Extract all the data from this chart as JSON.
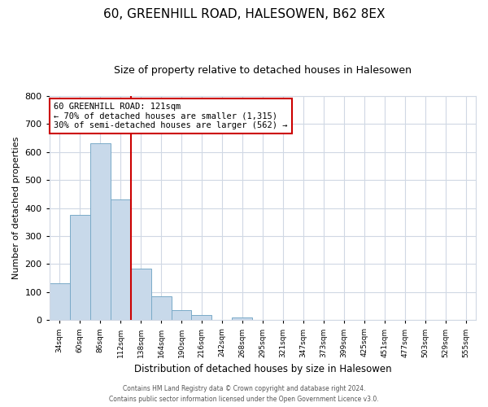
{
  "title": "60, GREENHILL ROAD, HALESOWEN, B62 8EX",
  "subtitle": "Size of property relative to detached houses in Halesowen",
  "xlabel": "Distribution of detached houses by size in Halesowen",
  "ylabel": "Number of detached properties",
  "bar_values": [
    130,
    375,
    632,
    430,
    185,
    85,
    35,
    17,
    0,
    10,
    0,
    0,
    0,
    0,
    0,
    0,
    0,
    0,
    0,
    0
  ],
  "bar_labels": [
    "34sqm",
    "60sqm",
    "86sqm",
    "112sqm",
    "138sqm",
    "164sqm",
    "190sqm",
    "216sqm",
    "242sqm",
    "268sqm",
    "295sqm",
    "321sqm",
    "347sqm",
    "373sqm",
    "399sqm",
    "425sqm",
    "451sqm",
    "477sqm",
    "503sqm",
    "529sqm",
    "555sqm"
  ],
  "bar_color": "#c8d9ea",
  "bar_edge_color": "#7aaac8",
  "vline_color": "#cc0000",
  "annotation_text_line1": "60 GREENHILL ROAD: 121sqm",
  "annotation_text_line2": "← 70% of detached houses are smaller (1,315)",
  "annotation_text_line3": "30% of semi-detached houses are larger (562) →",
  "annotation_box_edge_color": "#cc0000",
  "ylim": [
    0,
    800
  ],
  "yticks": [
    0,
    100,
    200,
    300,
    400,
    500,
    600,
    700,
    800
  ],
  "footer_line1": "Contains HM Land Registry data © Crown copyright and database right 2024.",
  "footer_line2": "Contains public sector information licensed under the Open Government Licence v3.0.",
  "fig_background_color": "#ffffff",
  "plot_background_color": "#ffffff",
  "grid_color": "#d0d8e4"
}
